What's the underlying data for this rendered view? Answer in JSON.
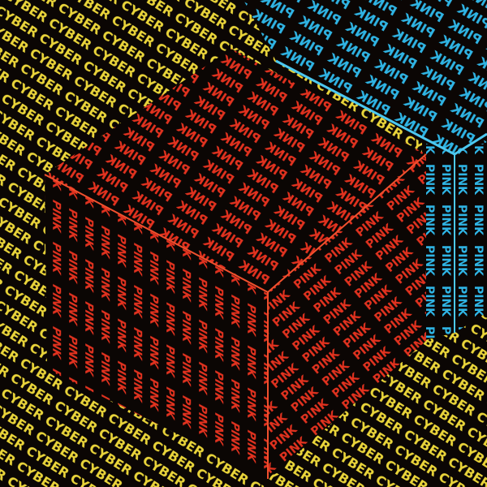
{
  "artwork": {
    "words": {
      "background": "CYBER",
      "cube": "PINK",
      "back_cube": "PINK"
    },
    "colors": {
      "background_text": "#e9d43a",
      "cube_text": "#e2321f",
      "back_cube_text": "#2fb4e4",
      "ground": "#0b0604",
      "cube_edge": "#f0502e",
      "back_cube_edge": "#4cc8f0"
    }
  }
}
